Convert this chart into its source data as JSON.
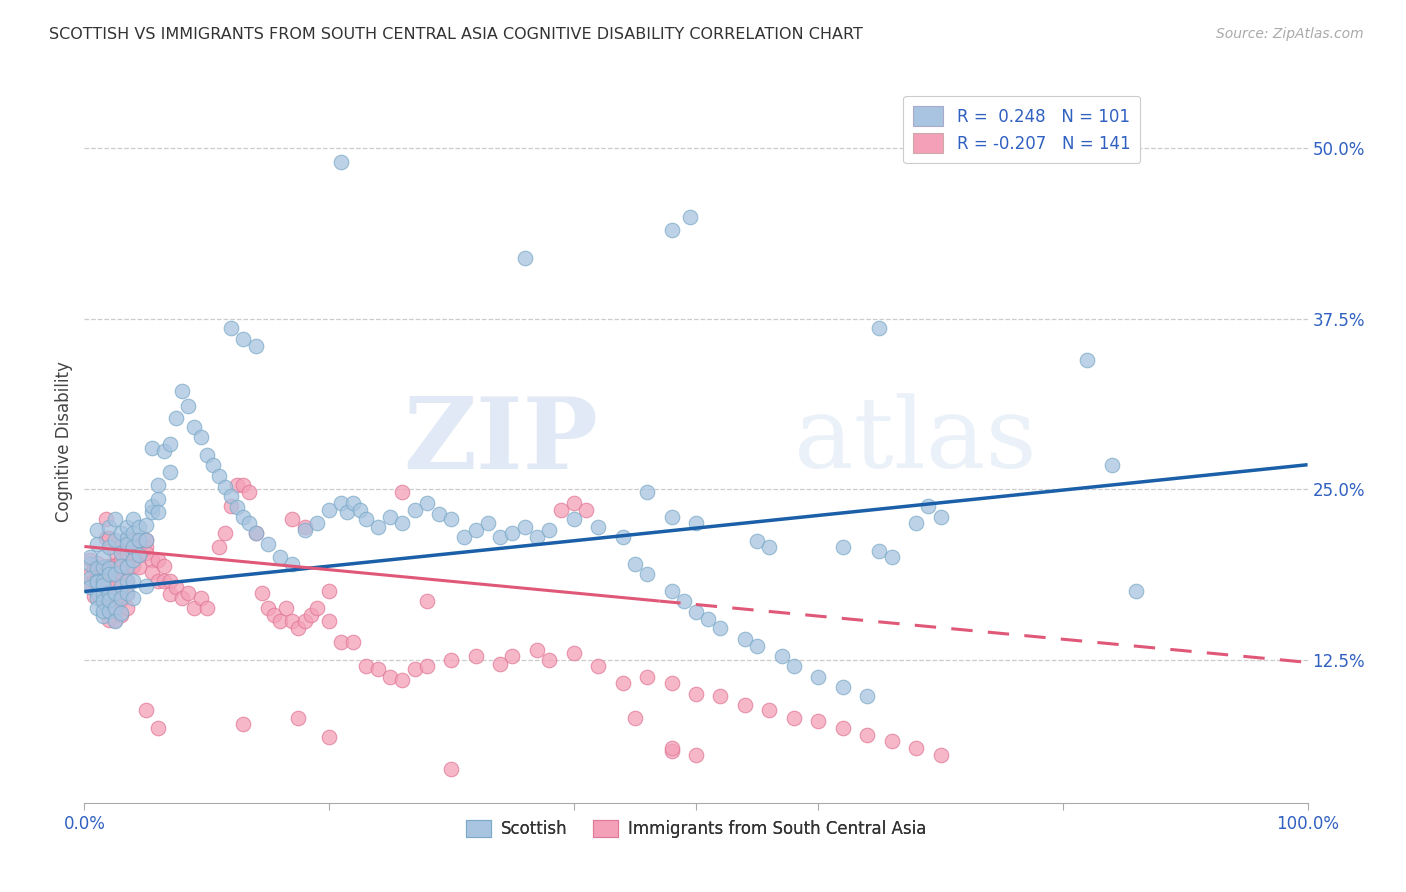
{
  "title": "SCOTTISH VS IMMIGRANTS FROM SOUTH CENTRAL ASIA COGNITIVE DISABILITY CORRELATION CHART",
  "source": "Source: ZipAtlas.com",
  "ylabel": "Cognitive Disability",
  "ytick_labels": [
    "12.5%",
    "25.0%",
    "37.5%",
    "50.0%"
  ],
  "ytick_values": [
    0.125,
    0.25,
    0.375,
    0.5
  ],
  "xlim": [
    0.0,
    1.0
  ],
  "ylim": [
    0.02,
    0.55
  ],
  "watermark": "ZIPatlas",
  "scottish_color": "#a8c4e0",
  "scottish_edge": "#7aaac8",
  "immigrants_color": "#f4a0b8",
  "immigrants_edge": "#e07898",
  "regression_blue": "#1a5fa8",
  "regression_pink": "#e05878",
  "label_color": "#3060c0",
  "scottish_scatter": [
    [
      0.005,
      0.195
    ],
    [
      0.005,
      0.185
    ],
    [
      0.005,
      0.178
    ],
    [
      0.005,
      0.2
    ],
    [
      0.01,
      0.192
    ],
    [
      0.01,
      0.183
    ],
    [
      0.01,
      0.174
    ],
    [
      0.01,
      0.182
    ],
    [
      0.01,
      0.17
    ],
    [
      0.01,
      0.163
    ],
    [
      0.01,
      0.21
    ],
    [
      0.01,
      0.22
    ],
    [
      0.015,
      0.193
    ],
    [
      0.015,
      0.183
    ],
    [
      0.015,
      0.173
    ],
    [
      0.015,
      0.18
    ],
    [
      0.015,
      0.168
    ],
    [
      0.015,
      0.157
    ],
    [
      0.015,
      0.161
    ],
    [
      0.015,
      0.2
    ],
    [
      0.02,
      0.192
    ],
    [
      0.02,
      0.208
    ],
    [
      0.02,
      0.222
    ],
    [
      0.02,
      0.188
    ],
    [
      0.02,
      0.174
    ],
    [
      0.02,
      0.161
    ],
    [
      0.02,
      0.169
    ],
    [
      0.025,
      0.213
    ],
    [
      0.025,
      0.228
    ],
    [
      0.025,
      0.188
    ],
    [
      0.025,
      0.174
    ],
    [
      0.025,
      0.163
    ],
    [
      0.025,
      0.153
    ],
    [
      0.03,
      0.218
    ],
    [
      0.03,
      0.203
    ],
    [
      0.03,
      0.194
    ],
    [
      0.03,
      0.179
    ],
    [
      0.03,
      0.17
    ],
    [
      0.03,
      0.159
    ],
    [
      0.035,
      0.214
    ],
    [
      0.035,
      0.222
    ],
    [
      0.035,
      0.21
    ],
    [
      0.035,
      0.193
    ],
    [
      0.035,
      0.183
    ],
    [
      0.035,
      0.174
    ],
    [
      0.04,
      0.228
    ],
    [
      0.04,
      0.218
    ],
    [
      0.04,
      0.208
    ],
    [
      0.04,
      0.198
    ],
    [
      0.04,
      0.183
    ],
    [
      0.04,
      0.17
    ],
    [
      0.045,
      0.222
    ],
    [
      0.045,
      0.213
    ],
    [
      0.045,
      0.202
    ],
    [
      0.05,
      0.224
    ],
    [
      0.05,
      0.213
    ],
    [
      0.05,
      0.179
    ],
    [
      0.055,
      0.233
    ],
    [
      0.055,
      0.238
    ],
    [
      0.055,
      0.28
    ],
    [
      0.06,
      0.243
    ],
    [
      0.06,
      0.253
    ],
    [
      0.06,
      0.233
    ],
    [
      0.065,
      0.278
    ],
    [
      0.07,
      0.263
    ],
    [
      0.07,
      0.283
    ],
    [
      0.075,
      0.302
    ],
    [
      0.08,
      0.322
    ],
    [
      0.085,
      0.311
    ],
    [
      0.09,
      0.296
    ],
    [
      0.095,
      0.288
    ],
    [
      0.1,
      0.275
    ],
    [
      0.105,
      0.268
    ],
    [
      0.11,
      0.26
    ],
    [
      0.115,
      0.252
    ],
    [
      0.12,
      0.245
    ],
    [
      0.125,
      0.237
    ],
    [
      0.13,
      0.23
    ],
    [
      0.135,
      0.225
    ],
    [
      0.14,
      0.218
    ],
    [
      0.15,
      0.21
    ],
    [
      0.16,
      0.2
    ],
    [
      0.17,
      0.195
    ],
    [
      0.18,
      0.22
    ],
    [
      0.19,
      0.225
    ],
    [
      0.2,
      0.235
    ],
    [
      0.21,
      0.24
    ],
    [
      0.215,
      0.233
    ],
    [
      0.22,
      0.24
    ],
    [
      0.225,
      0.235
    ],
    [
      0.23,
      0.228
    ],
    [
      0.24,
      0.222
    ],
    [
      0.25,
      0.23
    ],
    [
      0.26,
      0.225
    ],
    [
      0.27,
      0.235
    ],
    [
      0.28,
      0.24
    ],
    [
      0.29,
      0.232
    ],
    [
      0.3,
      0.228
    ],
    [
      0.31,
      0.215
    ],
    [
      0.32,
      0.22
    ],
    [
      0.33,
      0.225
    ],
    [
      0.34,
      0.215
    ],
    [
      0.35,
      0.218
    ],
    [
      0.36,
      0.222
    ],
    [
      0.37,
      0.215
    ],
    [
      0.38,
      0.22
    ],
    [
      0.4,
      0.228
    ],
    [
      0.42,
      0.222
    ],
    [
      0.44,
      0.215
    ],
    [
      0.45,
      0.195
    ],
    [
      0.46,
      0.188
    ],
    [
      0.48,
      0.175
    ],
    [
      0.49,
      0.168
    ],
    [
      0.5,
      0.16
    ],
    [
      0.51,
      0.155
    ],
    [
      0.52,
      0.148
    ],
    [
      0.54,
      0.14
    ],
    [
      0.55,
      0.135
    ],
    [
      0.57,
      0.128
    ],
    [
      0.58,
      0.12
    ],
    [
      0.6,
      0.112
    ],
    [
      0.62,
      0.105
    ],
    [
      0.64,
      0.098
    ],
    [
      0.21,
      0.49
    ],
    [
      0.36,
      0.42
    ],
    [
      0.48,
      0.44
    ],
    [
      0.495,
      0.45
    ],
    [
      0.46,
      0.248
    ],
    [
      0.48,
      0.23
    ],
    [
      0.5,
      0.225
    ],
    [
      0.55,
      0.212
    ],
    [
      0.56,
      0.208
    ],
    [
      0.62,
      0.208
    ],
    [
      0.65,
      0.205
    ],
    [
      0.66,
      0.2
    ],
    [
      0.68,
      0.225
    ],
    [
      0.69,
      0.238
    ],
    [
      0.7,
      0.23
    ],
    [
      0.82,
      0.345
    ],
    [
      0.84,
      0.268
    ],
    [
      0.86,
      0.175
    ],
    [
      0.65,
      0.368
    ],
    [
      0.12,
      0.368
    ],
    [
      0.13,
      0.36
    ],
    [
      0.14,
      0.355
    ]
  ],
  "immigrants_scatter": [
    [
      0.005,
      0.198
    ],
    [
      0.005,
      0.188
    ],
    [
      0.005,
      0.181
    ],
    [
      0.008,
      0.192
    ],
    [
      0.008,
      0.182
    ],
    [
      0.008,
      0.172
    ],
    [
      0.01,
      0.196
    ],
    [
      0.01,
      0.186
    ],
    [
      0.01,
      0.176
    ],
    [
      0.012,
      0.192
    ],
    [
      0.012,
      0.182
    ],
    [
      0.012,
      0.172
    ],
    [
      0.015,
      0.192
    ],
    [
      0.015,
      0.182
    ],
    [
      0.015,
      0.168
    ],
    [
      0.018,
      0.228
    ],
    [
      0.018,
      0.214
    ],
    [
      0.018,
      0.194
    ],
    [
      0.018,
      0.184
    ],
    [
      0.018,
      0.174
    ],
    [
      0.018,
      0.164
    ],
    [
      0.02,
      0.214
    ],
    [
      0.02,
      0.194
    ],
    [
      0.02,
      0.183
    ],
    [
      0.02,
      0.172
    ],
    [
      0.02,
      0.164
    ],
    [
      0.02,
      0.154
    ],
    [
      0.025,
      0.204
    ],
    [
      0.025,
      0.194
    ],
    [
      0.025,
      0.183
    ],
    [
      0.025,
      0.174
    ],
    [
      0.025,
      0.164
    ],
    [
      0.025,
      0.154
    ],
    [
      0.03,
      0.208
    ],
    [
      0.03,
      0.198
    ],
    [
      0.03,
      0.189
    ],
    [
      0.03,
      0.178
    ],
    [
      0.03,
      0.169
    ],
    [
      0.03,
      0.158
    ],
    [
      0.035,
      0.213
    ],
    [
      0.035,
      0.203
    ],
    [
      0.035,
      0.193
    ],
    [
      0.035,
      0.183
    ],
    [
      0.035,
      0.173
    ],
    [
      0.035,
      0.163
    ],
    [
      0.04,
      0.213
    ],
    [
      0.04,
      0.203
    ],
    [
      0.04,
      0.194
    ],
    [
      0.045,
      0.209
    ],
    [
      0.045,
      0.202
    ],
    [
      0.045,
      0.193
    ],
    [
      0.05,
      0.208
    ],
    [
      0.05,
      0.203
    ],
    [
      0.05,
      0.213
    ],
    [
      0.055,
      0.198
    ],
    [
      0.055,
      0.189
    ],
    [
      0.06,
      0.198
    ],
    [
      0.06,
      0.183
    ],
    [
      0.065,
      0.194
    ],
    [
      0.065,
      0.183
    ],
    [
      0.07,
      0.183
    ],
    [
      0.07,
      0.173
    ],
    [
      0.075,
      0.178
    ],
    [
      0.08,
      0.17
    ],
    [
      0.085,
      0.174
    ],
    [
      0.09,
      0.163
    ],
    [
      0.095,
      0.17
    ],
    [
      0.1,
      0.163
    ],
    [
      0.11,
      0.208
    ],
    [
      0.115,
      0.218
    ],
    [
      0.12,
      0.238
    ],
    [
      0.125,
      0.253
    ],
    [
      0.13,
      0.253
    ],
    [
      0.135,
      0.248
    ],
    [
      0.14,
      0.218
    ],
    [
      0.145,
      0.174
    ],
    [
      0.15,
      0.163
    ],
    [
      0.155,
      0.158
    ],
    [
      0.16,
      0.153
    ],
    [
      0.165,
      0.163
    ],
    [
      0.17,
      0.153
    ],
    [
      0.175,
      0.148
    ],
    [
      0.18,
      0.153
    ],
    [
      0.185,
      0.158
    ],
    [
      0.19,
      0.163
    ],
    [
      0.2,
      0.153
    ],
    [
      0.21,
      0.138
    ],
    [
      0.22,
      0.138
    ],
    [
      0.23,
      0.12
    ],
    [
      0.24,
      0.118
    ],
    [
      0.25,
      0.112
    ],
    [
      0.26,
      0.11
    ],
    [
      0.27,
      0.118
    ],
    [
      0.28,
      0.12
    ],
    [
      0.3,
      0.125
    ],
    [
      0.32,
      0.128
    ],
    [
      0.34,
      0.122
    ],
    [
      0.35,
      0.128
    ],
    [
      0.37,
      0.132
    ],
    [
      0.38,
      0.125
    ],
    [
      0.4,
      0.13
    ],
    [
      0.42,
      0.12
    ],
    [
      0.44,
      0.108
    ],
    [
      0.46,
      0.112
    ],
    [
      0.48,
      0.108
    ],
    [
      0.5,
      0.1
    ],
    [
      0.52,
      0.098
    ],
    [
      0.54,
      0.092
    ],
    [
      0.56,
      0.088
    ],
    [
      0.58,
      0.082
    ],
    [
      0.6,
      0.08
    ],
    [
      0.62,
      0.075
    ],
    [
      0.64,
      0.07
    ],
    [
      0.66,
      0.065
    ],
    [
      0.68,
      0.06
    ],
    [
      0.7,
      0.055
    ],
    [
      0.05,
      0.088
    ],
    [
      0.06,
      0.075
    ],
    [
      0.13,
      0.078
    ],
    [
      0.175,
      0.082
    ],
    [
      0.2,
      0.068
    ],
    [
      0.3,
      0.045
    ],
    [
      0.45,
      0.082
    ],
    [
      0.48,
      0.058
    ],
    [
      0.39,
      0.235
    ],
    [
      0.4,
      0.24
    ],
    [
      0.41,
      0.235
    ],
    [
      0.28,
      0.168
    ],
    [
      0.26,
      0.248
    ],
    [
      0.48,
      0.06
    ],
    [
      0.5,
      0.055
    ],
    [
      0.2,
      0.175
    ],
    [
      0.17,
      0.228
    ],
    [
      0.18,
      0.222
    ]
  ],
  "blue_line": {
    "x0": 0.0,
    "x1": 1.0,
    "y0": 0.175,
    "y1": 0.268
  },
  "pink_line_solid": {
    "x0": 0.0,
    "x1": 0.47,
    "y0": 0.208,
    "y1": 0.168
  },
  "pink_line_dash": {
    "x0": 0.47,
    "x1": 1.0,
    "y0": 0.168,
    "y1": 0.123
  }
}
